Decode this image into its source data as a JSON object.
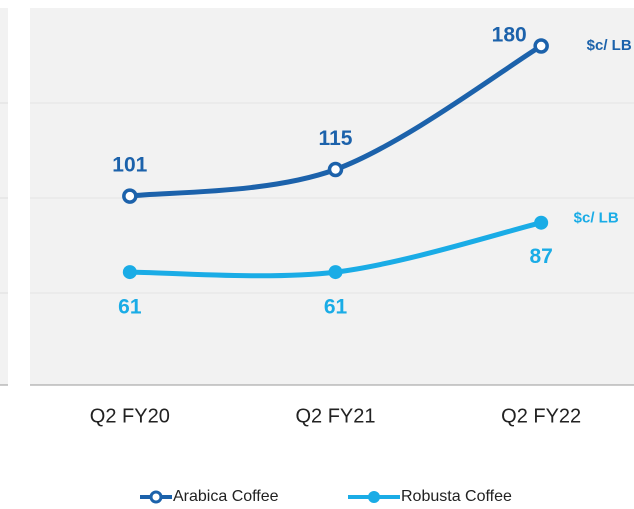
{
  "chart_data": {
    "type": "line",
    "categories": [
      "Q2 FY20",
      "Q2 FY21",
      "Q2 FY22"
    ],
    "series": [
      {
        "name": "Arabica Coffee",
        "color": "#1c62ab",
        "values": [
          101,
          115,
          180
        ],
        "unit": "$c/ LB"
      },
      {
        "name": "Robusta Coffee",
        "color": "#1aace6",
        "values": [
          61,
          61,
          87
        ],
        "unit": "$c/ LB"
      }
    ],
    "ylim": [
      0,
      200
    ],
    "yticks": [
      50,
      100,
      150
    ],
    "grid": true,
    "legend": "bottom"
  }
}
